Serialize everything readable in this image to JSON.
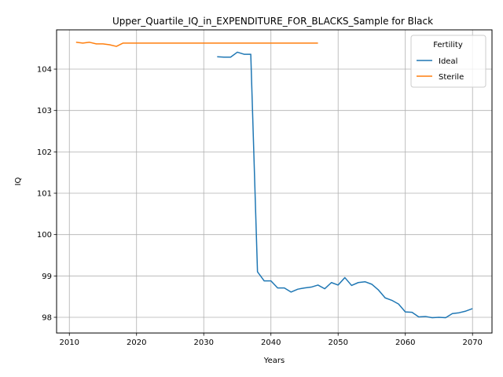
{
  "chart_data": {
    "type": "line",
    "title": "Upper_Quartile_IQ_in_EXPENDITURE_FOR_BLACKS_Sample for Black",
    "xlabel": "Years",
    "ylabel": "IQ",
    "xlim": [
      2008.1,
      2072.9
    ],
    "ylim": [
      97.62,
      104.95
    ],
    "x_ticks": [
      2010,
      2020,
      2030,
      2040,
      2050,
      2060,
      2070
    ],
    "y_ticks": [
      98,
      99,
      100,
      101,
      102,
      103,
      104
    ],
    "grid": true,
    "legend": {
      "title": "Fertility",
      "placement": "top-right"
    },
    "series": [
      {
        "name": "Ideal",
        "color": "#1f77b4",
        "x": [
          2032,
          2033,
          2034,
          2035,
          2036,
          2037,
          2038,
          2039,
          2040,
          2041,
          2042,
          2043,
          2044,
          2045,
          2046,
          2047,
          2048,
          2049,
          2050,
          2051,
          2052,
          2053,
          2054,
          2055,
          2056,
          2057,
          2058,
          2059,
          2060,
          2061,
          2062,
          2063,
          2064,
          2065,
          2066,
          2067,
          2068,
          2069,
          2070
        ],
        "y": [
          104.3,
          104.29,
          104.29,
          104.41,
          104.36,
          104.36,
          99.1,
          98.88,
          98.88,
          98.71,
          98.71,
          98.61,
          98.68,
          98.71,
          98.73,
          98.78,
          98.69,
          98.84,
          98.78,
          98.96,
          98.77,
          98.84,
          98.86,
          98.8,
          98.66,
          98.47,
          98.41,
          98.32,
          98.13,
          98.12,
          98.01,
          98.02,
          97.99,
          98.0,
          97.99,
          98.09,
          98.11,
          98.15,
          98.21
        ]
      },
      {
        "name": "Sterile",
        "color": "#ff7f0e",
        "x": [
          2011,
          2012,
          2013,
          2014,
          2015,
          2016,
          2017,
          2018,
          2019,
          2020,
          2021,
          2022,
          2023,
          2024,
          2025,
          2026,
          2027,
          2028,
          2029,
          2030,
          2031,
          2032,
          2033,
          2034,
          2035,
          2036,
          2037,
          2038,
          2039,
          2040,
          2041,
          2042,
          2043,
          2044,
          2045,
          2046,
          2047
        ],
        "y": [
          104.65,
          104.63,
          104.65,
          104.61,
          104.61,
          104.59,
          104.55,
          104.63,
          104.63,
          104.63,
          104.63,
          104.63,
          104.63,
          104.63,
          104.63,
          104.63,
          104.63,
          104.63,
          104.63,
          104.63,
          104.63,
          104.63,
          104.63,
          104.63,
          104.63,
          104.63,
          104.63,
          104.63,
          104.63,
          104.63,
          104.63,
          104.63,
          104.63,
          104.63,
          104.63,
          104.63,
          104.63
        ]
      }
    ]
  }
}
